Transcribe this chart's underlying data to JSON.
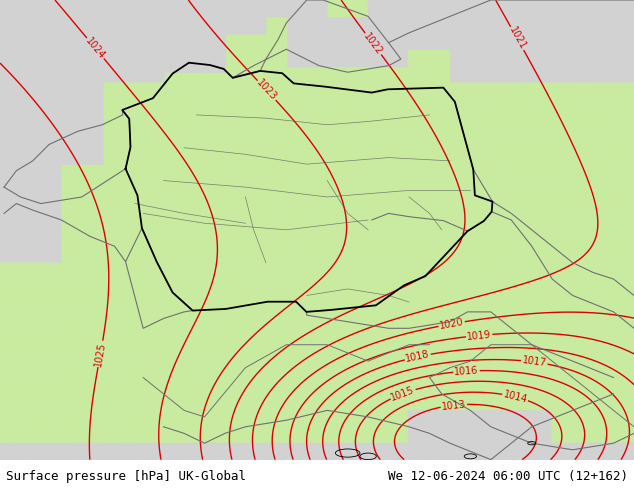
{
  "title_left": "Surface pressure [hPa] UK-Global",
  "title_right": "We 12-06-2024 06:00 UTC (12+162)",
  "bg_green": [
    200,
    235,
    160
  ],
  "bg_gray": [
    210,
    210,
    210
  ],
  "bg_white": [
    240,
    240,
    240
  ],
  "contour_color": "#dd0000",
  "border_color": "#000000",
  "coast_color": "#707070",
  "label_fontsize": 7,
  "title_fontsize": 9,
  "xlim": [
    3.0,
    18.5
  ],
  "ylim": [
    43.0,
    57.0
  ]
}
